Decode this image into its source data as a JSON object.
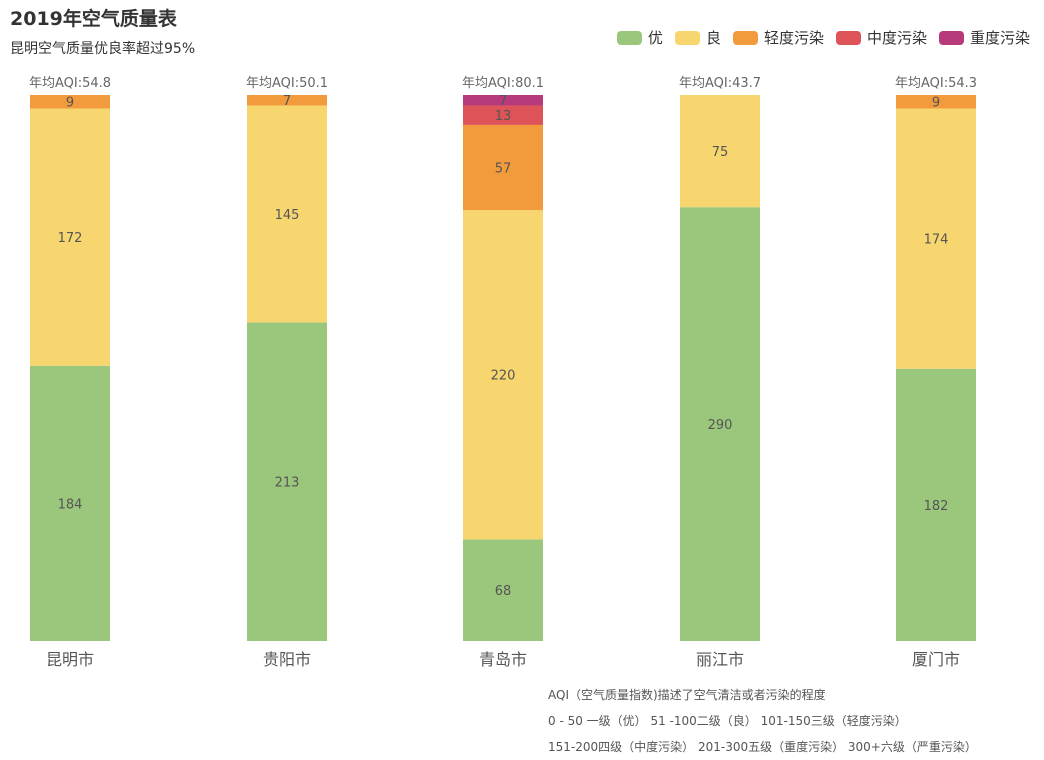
{
  "title": "2019年空气质量表",
  "subtitle": "昆明空气质量优良率超过95%",
  "legend": [
    {
      "name": "优",
      "color": "#9BC77D"
    },
    {
      "name": "良",
      "color": "#F7D56F"
    },
    {
      "name": "轻度污染",
      "color": "#F19B3C"
    },
    {
      "name": "中度污染",
      "color": "#DE5357"
    },
    {
      "name": "重度污染",
      "color": "#B73A7D"
    }
  ],
  "note": {
    "line1": "AQI（空气质量指数)描述了空气清洁或者污染的程度",
    "line2": "0 - 50 一级（优）   51 -100二级（良）   101-150三级（轻度污染）",
    "line3": "151-200四级（中度污染）   201-300五级（重度污染）   300+六级（严重污染）"
  },
  "chart_data": {
    "type": "bar",
    "stacked": true,
    "categories": [
      "昆明市",
      "贵阳市",
      "青岛市",
      "丽江市",
      "厦门市"
    ],
    "annual_avg_labels": [
      "年均AQI:54.8",
      "年均AQI:50.1",
      "年均AQI:80.1",
      "年均AQI:43.7",
      "年均AQI:54.3"
    ],
    "series": [
      {
        "name": "优",
        "color": "#9BC77D",
        "values": [
          184,
          213,
          68,
          290,
          182
        ]
      },
      {
        "name": "良",
        "color": "#F7D56F",
        "values": [
          172,
          145,
          220,
          75,
          174
        ]
      },
      {
        "name": "轻度污染",
        "color": "#F19B3C",
        "values": [
          9,
          7,
          57,
          0,
          9
        ]
      },
      {
        "name": "中度污染",
        "color": "#DE5357",
        "values": [
          0,
          0,
          13,
          0,
          0
        ]
      },
      {
        "name": "重度污染",
        "color": "#B73A7D",
        "values": [
          0,
          0,
          7,
          0,
          0
        ]
      }
    ],
    "legend_position": "top-right",
    "grid": false
  }
}
